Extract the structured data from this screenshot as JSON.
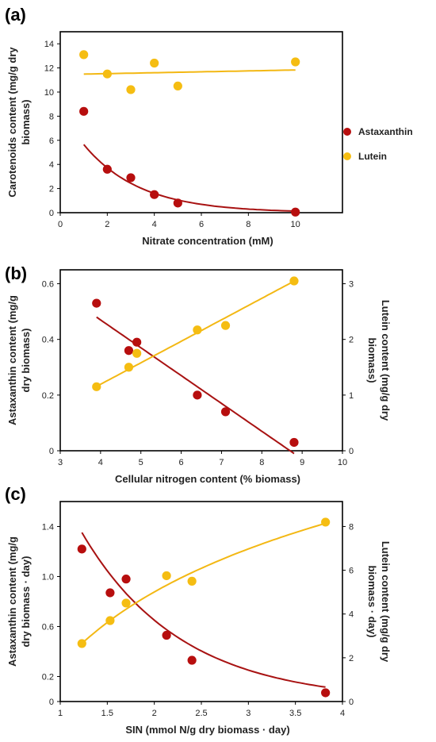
{
  "colors": {
    "astaxanthin": "#B70E0E",
    "lutein": "#F5BD12",
    "astaxanthin_line": "#A81212",
    "lutein_line": "#F3B814"
  },
  "legend": {
    "placement": "right",
    "entries": [
      "Astaxanthin",
      "Lutein"
    ]
  },
  "chart_data": [
    {
      "panel": "(a)",
      "type": "scatter",
      "xlabel": "Nitrate concentration (mM)",
      "ylabel": [
        "Carotenoids content (mg/g dry",
        "biomass)"
      ],
      "xlim": [
        0,
        12
      ],
      "ylim": [
        0,
        15
      ],
      "xticks": [
        "0",
        "2",
        "4",
        "6",
        "8",
        "10"
      ],
      "yticks": [
        "0",
        "2",
        "4",
        "6",
        "8",
        "10",
        "12",
        "14"
      ],
      "series": [
        {
          "name": "Astaxanthin",
          "x": [
            1,
            2,
            3,
            4,
            5,
            10
          ],
          "y": [
            8.4,
            3.6,
            2.9,
            1.5,
            0.8,
            0.05
          ],
          "fit": {
            "kind": "exp",
            "a": 8.6,
            "b": -0.42,
            "x_range": [
              1,
              10
            ]
          }
        },
        {
          "name": "Lutein",
          "x": [
            1,
            2,
            3,
            4,
            5,
            10
          ],
          "y": [
            13.1,
            11.5,
            10.2,
            12.4,
            10.5,
            12.5
          ],
          "fit": {
            "kind": "linear",
            "m": 0.038,
            "c": 11.45,
            "x_range": [
              1,
              10
            ]
          }
        }
      ]
    },
    {
      "panel": "(b)",
      "type": "scatter",
      "xlabel": "Cellular nitrogen content (% biomass)",
      "ylabel": [
        "Astaxanthin content (mg/g",
        "dry biomass)"
      ],
      "ylabel_right": [
        "Lutein content (mg/g dry",
        "biomass)"
      ],
      "xlim": [
        3,
        10
      ],
      "ylim": [
        0,
        0.65
      ],
      "ylim_right": [
        0,
        3.25
      ],
      "xticks": [
        "3",
        "4",
        "5",
        "6",
        "7",
        "8",
        "9",
        "10"
      ],
      "yticks": [
        "0",
        "0.2",
        "0.4",
        "0.6"
      ],
      "yticks_right": [
        "0",
        "1",
        "2",
        "3"
      ],
      "series": [
        {
          "name": "Astaxanthin",
          "axis": "left",
          "x": [
            3.9,
            4.7,
            4.9,
            6.4,
            7.1,
            8.8
          ],
          "y": [
            0.53,
            0.36,
            0.39,
            0.2,
            0.14,
            0.03
          ],
          "fit": {
            "kind": "linear",
            "m": -0.1,
            "c": 0.87,
            "x_range": [
              3.9,
              8.8
            ]
          }
        },
        {
          "name": "Lutein",
          "axis": "right",
          "x": [
            3.9,
            4.7,
            4.9,
            6.4,
            7.1,
            8.8
          ],
          "y": [
            1.15,
            1.5,
            1.75,
            2.17,
            2.25,
            3.05
          ],
          "fit": {
            "kind": "linear",
            "m": 0.386,
            "c": -0.35,
            "x_range": [
              3.9,
              8.8
            ]
          }
        }
      ]
    },
    {
      "panel": "(c)",
      "type": "scatter",
      "xlabel": "SIN (mmol N/g dry biomass · day)",
      "ylabel": [
        "Astaxanthin content (mg/g",
        "dry biomass · day)"
      ],
      "ylabel_right": [
        "Lutein content (mg/g dry",
        "biomass · day)"
      ],
      "xlim": [
        1,
        4
      ],
      "ylim": [
        0,
        1.6
      ],
      "ylim_right": [
        0,
        9.14
      ],
      "xticks": [
        "1",
        "1.5",
        "2",
        "2.5",
        "3",
        "3.5",
        "4"
      ],
      "yticks": [
        "0",
        "0.2",
        "0.6",
        "1.0",
        "1.4"
      ],
      "ytick_values": [
        0,
        0.2,
        0.6,
        1.0,
        1.4
      ],
      "yticks_right": [
        "0",
        "2",
        "4",
        "6",
        "8"
      ],
      "series": [
        {
          "name": "Astaxanthin",
          "axis": "left",
          "x": [
            1.23,
            1.53,
            1.7,
            2.13,
            2.4,
            3.82
          ],
          "y": [
            1.22,
            0.87,
            0.98,
            0.53,
            0.33,
            0.07
          ],
          "fit": {
            "kind": "exp",
            "a": 4.35,
            "b": -0.95,
            "x_range": [
              1.23,
              3.82
            ]
          }
        },
        {
          "name": "Lutein",
          "axis": "right",
          "x": [
            1.23,
            1.53,
            1.7,
            2.13,
            2.4,
            3.82
          ],
          "y": [
            2.65,
            3.7,
            4.5,
            5.75,
            5.5,
            8.2
          ],
          "fit": {
            "kind": "log",
            "a": 2.65,
            "b": 4.85,
            "x0": 1.23,
            "x_range": [
              1.23,
              3.82
            ]
          }
        }
      ]
    }
  ]
}
